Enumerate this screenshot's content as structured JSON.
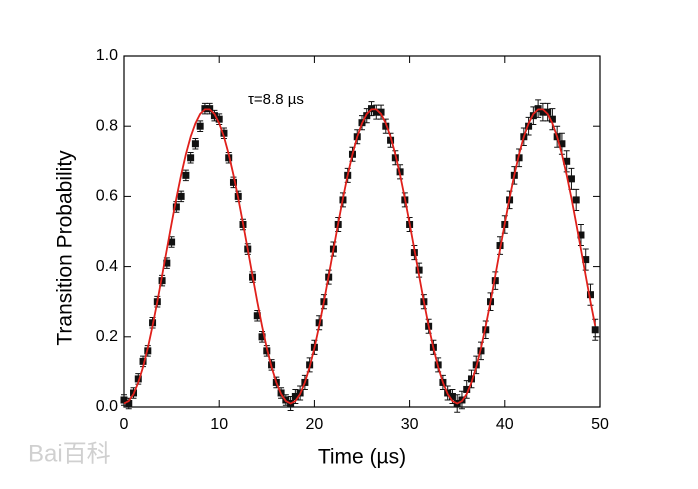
{
  "chart_data": {
    "type": "scatter",
    "xlabel": "Time (µs)",
    "ylabel": "Transition Probability",
    "annotation": "τ=8.8 µs",
    "watermark": "Bai百科",
    "xlim": [
      0,
      50
    ],
    "ylim": [
      0,
      1
    ],
    "xticks": [
      0,
      10,
      20,
      30,
      40,
      50
    ],
    "yticks": [
      {
        "value": 0,
        "label": "0.0"
      },
      {
        "value": 0.2,
        "label": "0.2"
      },
      {
        "value": 0.4,
        "label": "0.4"
      },
      {
        "value": 0.6,
        "label": "0.6"
      },
      {
        "value": 0.8,
        "label": "0.8"
      },
      {
        "value": 1,
        "label": "1.0"
      }
    ],
    "x": [
      0,
      0.5,
      1,
      1.5,
      2,
      2.5,
      3,
      3.5,
      4,
      4.5,
      5,
      5.5,
      6,
      6.5,
      7,
      7.5,
      8,
      8.5,
      9,
      9.5,
      10,
      10.5,
      11,
      11.5,
      12,
      12.5,
      13,
      13.5,
      14,
      14.5,
      15,
      15.5,
      16,
      16.5,
      17,
      17.5,
      18,
      18.5,
      19,
      19.5,
      20,
      20.5,
      21,
      21.5,
      22,
      22.5,
      23,
      23.5,
      24,
      24.5,
      25,
      25.5,
      26,
      26.5,
      27,
      27.5,
      28,
      28.5,
      29,
      29.5,
      30,
      30.5,
      31,
      31.5,
      32,
      32.5,
      33,
      33.5,
      34,
      34.5,
      35,
      35.5,
      36,
      36.5,
      37,
      37.5,
      38,
      38.5,
      39,
      39.5,
      40,
      40.5,
      41,
      41.5,
      42,
      42.5,
      43,
      43.5,
      44,
      44.5,
      45,
      45.5,
      46,
      46.5,
      47,
      47.5,
      48,
      48.5,
      49,
      49.5
    ],
    "series": [
      {
        "color": "#111111",
        "marker": "square",
        "values": [
          0.02,
          0.01,
          0.04,
          0.08,
          0.13,
          0.16,
          0.24,
          0.3,
          0.36,
          0.41,
          0.47,
          0.57,
          0.6,
          0.66,
          0.71,
          0.75,
          0.8,
          0.85,
          0.85,
          0.83,
          0.82,
          0.78,
          0.71,
          0.64,
          0.6,
          0.52,
          0.45,
          0.37,
          0.26,
          0.2,
          0.16,
          0.12,
          0.07,
          0.04,
          0.02,
          0.01,
          0.03,
          0.04,
          0.07,
          0.12,
          0.17,
          0.24,
          0.3,
          0.37,
          0.45,
          0.52,
          0.59,
          0.66,
          0.72,
          0.77,
          0.81,
          0.83,
          0.85,
          0.84,
          0.84,
          0.8,
          0.76,
          0.71,
          0.67,
          0.59,
          0.52,
          0.44,
          0.39,
          0.3,
          0.23,
          0.17,
          0.12,
          0.07,
          0.04,
          0.03,
          0.01,
          0.02,
          0.05,
          0.08,
          0.12,
          0.16,
          0.22,
          0.3,
          0.36,
          0.46,
          0.52,
          0.59,
          0.66,
          0.71,
          0.77,
          0.8,
          0.83,
          0.85,
          0.84,
          0.84,
          0.82,
          0.77,
          0.75,
          0.7,
          0.65,
          0.59,
          0.49,
          0.42,
          0.32,
          0.22
        ],
        "errors": [
          0.015,
          0.015,
          0.015,
          0.015,
          0.015,
          0.015,
          0.015,
          0.015,
          0.015,
          0.015,
          0.015,
          0.015,
          0.015,
          0.015,
          0.015,
          0.015,
          0.015,
          0.015,
          0.015,
          0.015,
          0.015,
          0.015,
          0.015,
          0.015,
          0.015,
          0.015,
          0.015,
          0.015,
          0.015,
          0.015,
          0.015,
          0.015,
          0.015,
          0.015,
          0.015,
          0.02,
          0.02,
          0.02,
          0.02,
          0.02,
          0.02,
          0.02,
          0.02,
          0.02,
          0.02,
          0.02,
          0.02,
          0.02,
          0.02,
          0.02,
          0.02,
          0.02,
          0.02,
          0.02,
          0.02,
          0.02,
          0.02,
          0.02,
          0.02,
          0.02,
          0.02,
          0.02,
          0.02,
          0.02,
          0.02,
          0.02,
          0.02,
          0.02,
          0.02,
          0.02,
          0.025,
          0.025,
          0.025,
          0.025,
          0.025,
          0.025,
          0.025,
          0.025,
          0.025,
          0.025,
          0.025,
          0.025,
          0.025,
          0.025,
          0.025,
          0.025,
          0.025,
          0.025,
          0.025,
          0.025,
          0.03,
          0.03,
          0.03,
          0.03,
          0.03,
          0.03,
          0.03,
          0.03,
          0.03,
          0.03
        ]
      },
      {
        "color": "#e0201b",
        "line": true,
        "values": [
          0.01,
          0.017,
          0.037,
          0.07,
          0.114,
          0.168,
          0.231,
          0.3,
          0.374,
          0.449,
          0.523,
          0.595,
          0.661,
          0.72,
          0.77,
          0.808,
          0.835,
          0.848,
          0.848,
          0.835,
          0.808,
          0.77,
          0.72,
          0.661,
          0.595,
          0.523,
          0.449,
          0.374,
          0.3,
          0.231,
          0.168,
          0.114,
          0.07,
          0.037,
          0.017,
          0.01,
          0.017,
          0.037,
          0.07,
          0.114,
          0.168,
          0.231,
          0.3,
          0.374,
          0.449,
          0.523,
          0.595,
          0.661,
          0.72,
          0.77,
          0.808,
          0.835,
          0.848,
          0.848,
          0.835,
          0.808,
          0.77,
          0.72,
          0.661,
          0.595,
          0.523,
          0.449,
          0.374,
          0.3,
          0.231,
          0.168,
          0.114,
          0.07,
          0.037,
          0.017,
          0.01,
          0.017,
          0.037,
          0.07,
          0.114,
          0.168,
          0.231,
          0.3,
          0.374,
          0.449,
          0.523,
          0.595,
          0.661,
          0.72,
          0.77,
          0.808,
          0.835,
          0.848,
          0.848,
          0.835,
          0.808,
          0.77,
          0.72,
          0.661,
          0.595,
          0.523,
          0.449,
          0.374,
          0.3,
          0.231
        ]
      }
    ]
  }
}
